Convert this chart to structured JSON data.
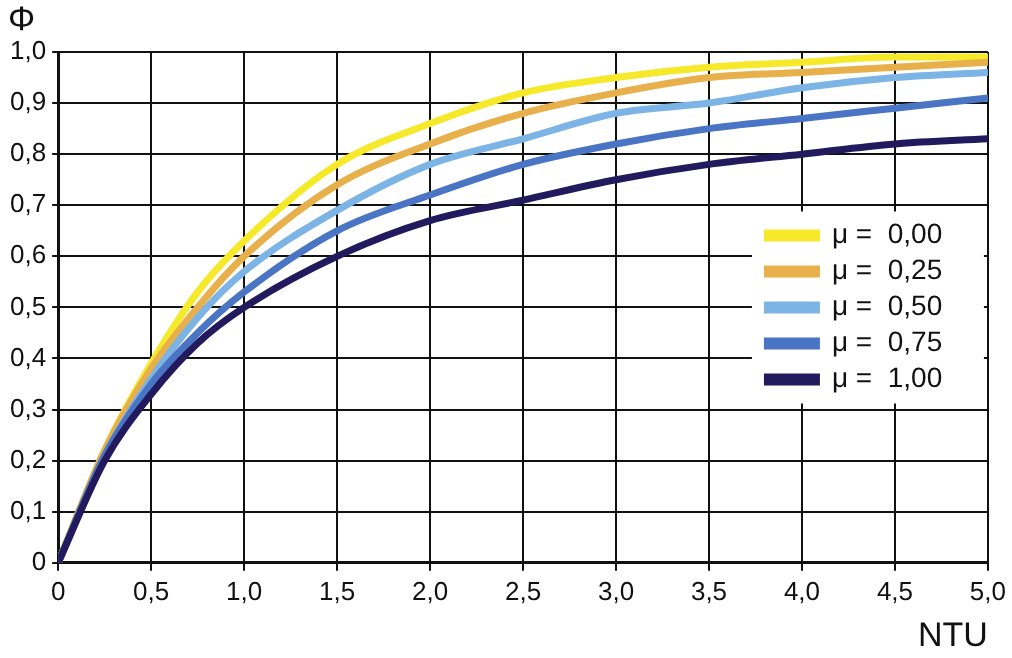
{
  "chart_data": {
    "type": "line",
    "xlabel": "NTU",
    "ylabel": "Φ",
    "x": [
      0,
      0.25,
      0.5,
      0.75,
      1,
      1.5,
      2,
      2.5,
      3,
      3.5,
      4,
      4.5,
      5
    ],
    "series": [
      {
        "name": "μ =  0,00",
        "color": "#f5e92a",
        "values": [
          0,
          0.22,
          0.39,
          0.53,
          0.63,
          0.78,
          0.86,
          0.92,
          0.95,
          0.97,
          0.98,
          0.99,
          0.99
        ]
      },
      {
        "name": "μ =  0,25",
        "color": "#e8b04a",
        "values": [
          0,
          0.22,
          0.38,
          0.5,
          0.6,
          0.74,
          0.82,
          0.88,
          0.92,
          0.95,
          0.96,
          0.97,
          0.98
        ]
      },
      {
        "name": "μ =  0,50",
        "color": "#7db4e6",
        "values": [
          0,
          0.21,
          0.36,
          0.48,
          0.57,
          0.69,
          0.78,
          0.83,
          0.88,
          0.9,
          0.93,
          0.95,
          0.96
        ]
      },
      {
        "name": "μ =  0,75",
        "color": "#4a74c4",
        "values": [
          0,
          0.21,
          0.35,
          0.45,
          0.53,
          0.65,
          0.72,
          0.78,
          0.82,
          0.85,
          0.87,
          0.89,
          0.91
        ]
      },
      {
        "name": "μ =  1,00",
        "color": "#231a5e",
        "values": [
          0,
          0.2,
          0.33,
          0.43,
          0.5,
          0.6,
          0.67,
          0.71,
          0.75,
          0.78,
          0.8,
          0.82,
          0.83
        ]
      }
    ],
    "xlim": [
      0,
      5
    ],
    "ylim": [
      0,
      1
    ],
    "xticks": [
      0,
      {
        "value": 0.5,
        "label": "0,5"
      },
      {
        "value": 1,
        "label": "1,0"
      },
      {
        "value": 1.5,
        "label": "1,5"
      },
      {
        "value": 2,
        "label": "2,0"
      },
      {
        "value": 2.5,
        "label": "2,5"
      },
      {
        "value": 3,
        "label": "3,0"
      },
      {
        "value": 3.5,
        "label": "3,5"
      },
      {
        "value": 4,
        "label": "4,0"
      },
      {
        "value": 4.5,
        "label": "4,5"
      },
      {
        "value": 5,
        "label": "5,0"
      }
    ],
    "yticks": [
      0,
      {
        "value": 0.1,
        "label": "0,1"
      },
      {
        "value": 0.2,
        "label": "0,2"
      },
      {
        "value": 0.3,
        "label": "0,3"
      },
      {
        "value": 0.4,
        "label": "0,4"
      },
      {
        "value": 0.5,
        "label": "0,5"
      },
      {
        "value": 0.6,
        "label": "0,6"
      },
      {
        "value": 0.7,
        "label": "0,7"
      },
      {
        "value": 0.8,
        "label": "0,8"
      },
      {
        "value": 0.9,
        "label": "0,9"
      },
      {
        "value": 1,
        "label": "1,0"
      }
    ],
    "grid": true,
    "legend": "right",
    "marker": "none",
    "line_style": "solid"
  }
}
